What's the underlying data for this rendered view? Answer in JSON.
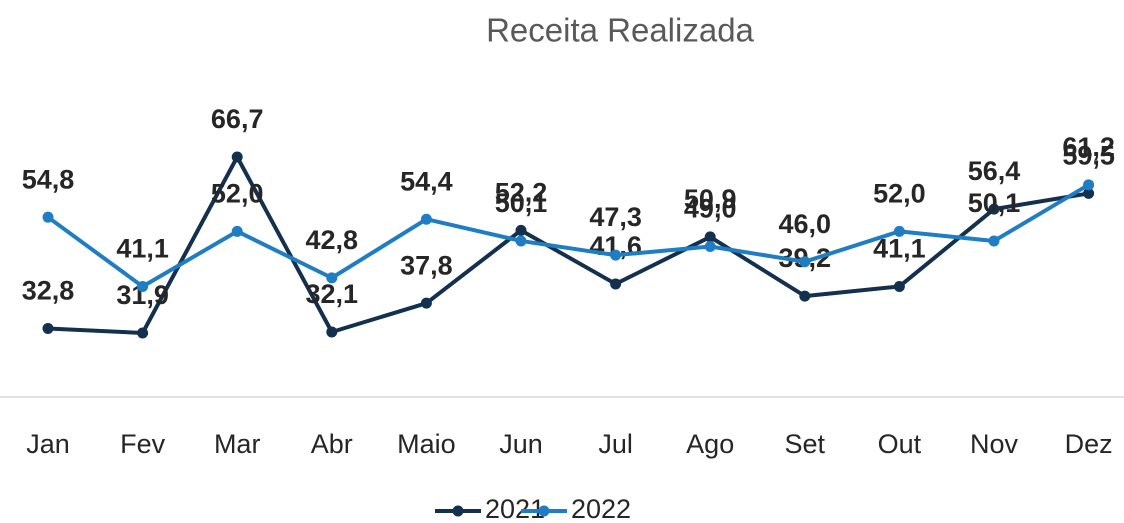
{
  "chart_data": {
    "type": "line",
    "title": "Receita Realizada",
    "categories": [
      "Jan",
      "Fev",
      "Mar",
      "Abr",
      "Maio",
      "Jun",
      "Jul",
      "Ago",
      "Set",
      "Out",
      "Nov",
      "Dez"
    ],
    "series": [
      {
        "name": "2021",
        "color": "#13304f",
        "values": [
          32.8,
          31.9,
          66.7,
          32.1,
          37.8,
          52.2,
          41.6,
          50.9,
          39.2,
          41.1,
          56.4,
          59.5
        ],
        "value_labels": [
          "32,8",
          "31,9",
          "66,7",
          "32,1",
          "37,8",
          "52,2",
          "41,6",
          "50,9",
          "39,2",
          "41,1",
          "56,4",
          "59,5"
        ]
      },
      {
        "name": "2022",
        "color": "#1f7dc4",
        "values": [
          54.8,
          41.1,
          52.0,
          42.8,
          54.4,
          50.1,
          47.3,
          49.0,
          46.0,
          52.0,
          50.1,
          61.2
        ],
        "value_labels": [
          "54,8",
          "41,1",
          "52,0",
          "42,8",
          "54,4",
          "50,1",
          "47,3",
          "49,0",
          "46,0",
          "52,0",
          "50,1",
          "61,2"
        ]
      }
    ],
    "legend": "bottom"
  }
}
